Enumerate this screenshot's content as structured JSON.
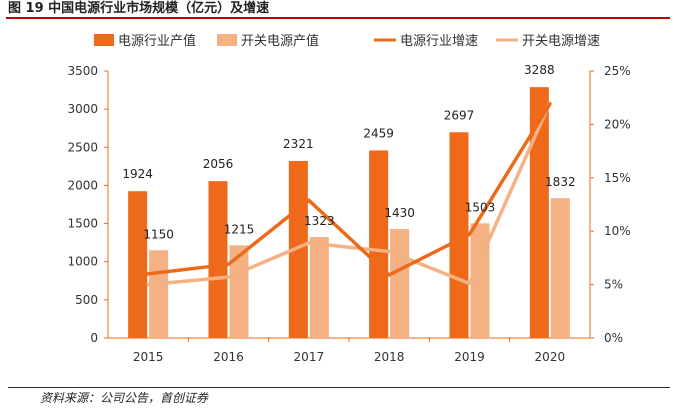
{
  "figure": {
    "title": "图 19 中国电源行业市场规模（亿元）及增速",
    "source": "资料来源：公司公告，首创证券"
  },
  "colors": {
    "industry_bar": "#ee6a1a",
    "switch_bar": "#f4b183",
    "industry_line": "#ee6a1a",
    "switch_line": "#f4b183",
    "title_rule": "#c00000"
  },
  "chart_data": {
    "type": "bar",
    "title": "中国电源行业市场规模（亿元）及增速",
    "categories": [
      "2015",
      "2016",
      "2017",
      "2018",
      "2019",
      "2020"
    ],
    "series": [
      {
        "name": "电源行业产值",
        "type": "bar",
        "axis": "left",
        "values": [
          1924,
          2056,
          2321,
          2459,
          2697,
          3288
        ]
      },
      {
        "name": "开关电源产值",
        "type": "bar",
        "axis": "left",
        "values": [
          1150,
          1215,
          1323,
          1430,
          1503,
          1832
        ]
      },
      {
        "name": "电源行业增速",
        "type": "line",
        "axis": "right",
        "values": [
          6.0,
          6.9,
          12.9,
          5.9,
          9.7,
          21.9
        ]
      },
      {
        "name": "开关电源增速",
        "type": "line",
        "axis": "right",
        "values": [
          5.0,
          5.7,
          8.9,
          8.1,
          5.1,
          22.0
        ]
      }
    ],
    "y_left": {
      "min": 0,
      "max": 3500,
      "step": 500,
      "ticks": [
        "0",
        "500",
        "1000",
        "1500",
        "2000",
        "2500",
        "3000",
        "3500"
      ]
    },
    "y_right": {
      "min": 0,
      "max": 25,
      "step": 5,
      "ticks": [
        "0%",
        "5%",
        "10%",
        "15%",
        "20%",
        "25%"
      ]
    },
    "legend": {
      "position": "top",
      "items": [
        "电源行业产值",
        "开关电源产值",
        "电源行业增速",
        "开关电源增速"
      ]
    },
    "grid": false
  }
}
